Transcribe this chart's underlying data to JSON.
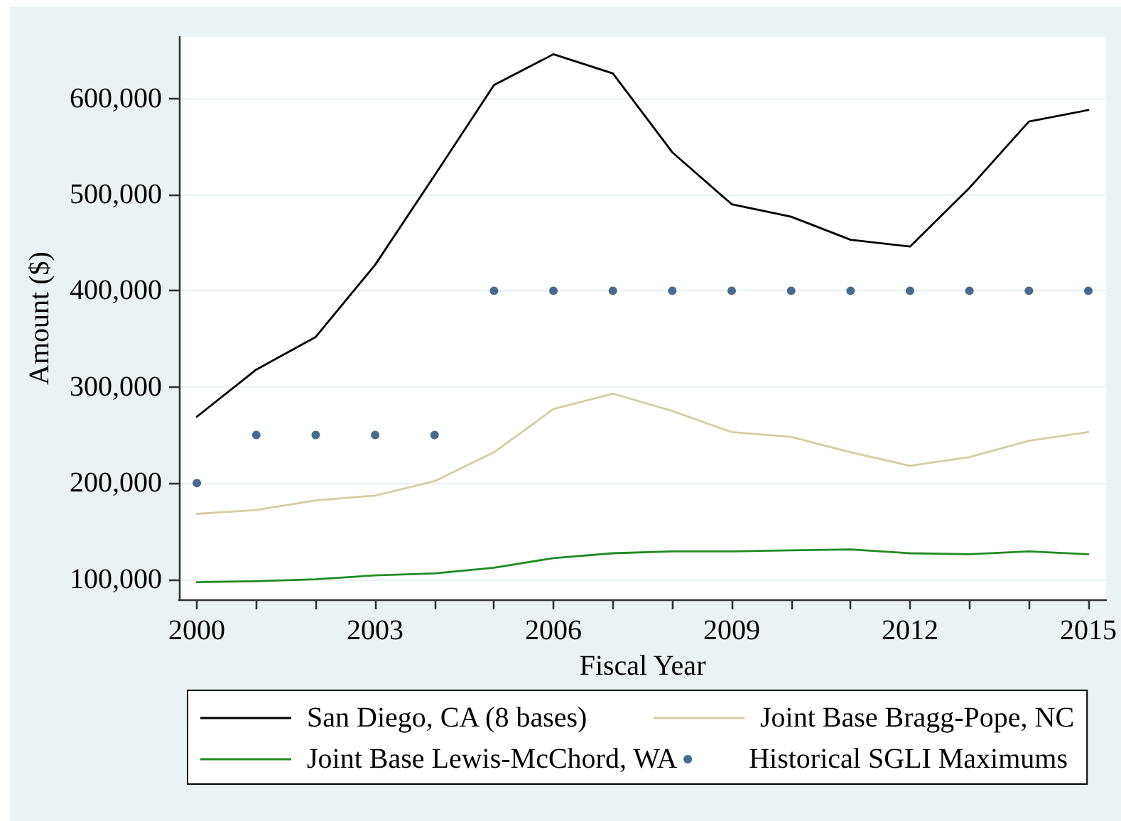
{
  "chart_data": {
    "type": "line",
    "xlabel": "Fiscal Year",
    "ylabel": "Amount ($)",
    "x": [
      2000,
      2001,
      2002,
      2003,
      2004,
      2005,
      2006,
      2007,
      2008,
      2009,
      2010,
      2011,
      2012,
      2013,
      2014,
      2015
    ],
    "series": [
      {
        "name": "San Diego, CA (8 bases)",
        "color": "#000000",
        "values": [
          269000,
          318000,
          352000,
          427000,
          520000,
          614000,
          646000,
          626000,
          544000,
          490000,
          477000,
          453000,
          446000,
          507000,
          576000,
          588000
        ]
      },
      {
        "name": "Joint Base Bragg-Pope, NC",
        "color": "#d6cda5",
        "values": [
          168000,
          172000,
          182000,
          187000,
          202000,
          232000,
          277000,
          293000,
          275000,
          253000,
          248000,
          232000,
          218000,
          227000,
          244000,
          253000
        ]
      },
      {
        "name": "Joint Base Lewis-McChord, WA",
        "color": "#1f8b24",
        "values": [
          97000,
          98000,
          100000,
          104000,
          106000,
          112000,
          122000,
          127000,
          129000,
          129000,
          130000,
          131000,
          127000,
          126000,
          129000,
          126000
        ]
      },
      {
        "name": "Historical SGLI Maximums",
        "color": "#1a476f",
        "type": "scatter",
        "marker": "circle",
        "values": [
          200000,
          250000,
          250000,
          250000,
          250000,
          400000,
          400000,
          400000,
          400000,
          400000,
          400000,
          400000,
          400000,
          400000,
          400000,
          400000
        ]
      }
    ],
    "marker": "none",
    "line_style": "solid",
    "xlim": [
      1999.7,
      2015.3
    ],
    "xticks": [
      2000,
      {
        "value": 2001,
        "label": null
      },
      {
        "value": 2002,
        "label": null
      },
      2003,
      {
        "value": 2004,
        "label": null
      },
      {
        "value": 2005,
        "label": null
      },
      2006,
      {
        "value": 2007,
        "label": null
      },
      {
        "value": 2008,
        "label": null
      },
      2009,
      {
        "value": 2010,
        "label": null
      },
      {
        "value": 2011,
        "label": null
      },
      2012,
      {
        "value": 2013,
        "label": null
      },
      {
        "value": 2014,
        "label": null
      },
      2015
    ],
    "ylim": [
      79000,
      664000
    ],
    "yticks": [
      {
        "value": 100000,
        "label": "100,000"
      },
      {
        "value": 200000,
        "label": "200,000"
      },
      {
        "value": 300000,
        "label": "300,000"
      },
      {
        "value": 400000,
        "label": "400,000"
      },
      {
        "value": 500000,
        "label": "500,000"
      },
      {
        "value": 600000,
        "label": "600,000"
      }
    ],
    "grid": "y",
    "legend": "bottom"
  }
}
